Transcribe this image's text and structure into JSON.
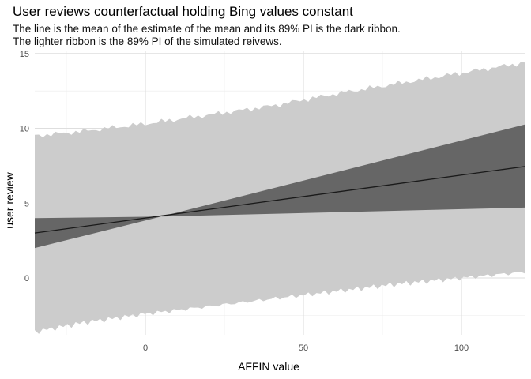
{
  "chart_data": {
    "type": "area",
    "title": "User reviews counterfactual holding Bing values constant",
    "subtitle_lines": [
      "The line is the mean of the estimate of the mean and its 89% PI is the dark ribbon.",
      "The lighter ribbon is the 89% PI of the simulated reivews."
    ],
    "xlabel": "AFFIN value",
    "ylabel": "user review",
    "xlim": [
      -35,
      120
    ],
    "ylim": [
      -3.8,
      15.2
    ],
    "x_ticks": [
      0,
      50,
      100
    ],
    "y_ticks": [
      0,
      5,
      10,
      15
    ],
    "grid": true,
    "series": [
      {
        "kind": "mean_line",
        "x": [
          -35,
          120
        ],
        "y": [
          3.0,
          7.45
        ]
      },
      {
        "kind": "ribbon_dark",
        "x": [
          -35,
          5,
          120
        ],
        "lower": [
          2.0,
          4.1,
          4.7
        ],
        "upper": [
          4.0,
          4.1,
          10.25
        ]
      },
      {
        "kind": "ribbon_light",
        "x": [
          -35,
          -20,
          0,
          20,
          40,
          60,
          80,
          100,
          120
        ],
        "lower": [
          -3.6,
          -3.0,
          -2.4,
          -1.9,
          -1.4,
          -0.9,
          -0.4,
          0.0,
          0.4
        ],
        "upper": [
          9.5,
          9.8,
          10.3,
          10.9,
          11.5,
          12.3,
          13.0,
          13.7,
          14.4
        ]
      }
    ],
    "colors": {
      "light_ribbon": "#cccccc",
      "dark_ribbon": "#666666",
      "line": "#1a1a1a",
      "grid": "#ebebeb"
    }
  }
}
